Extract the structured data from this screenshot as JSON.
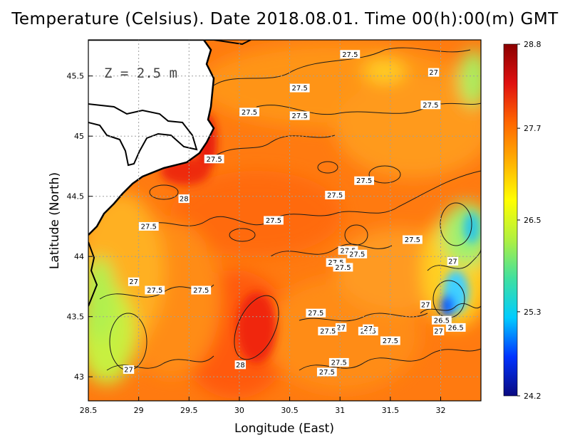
{
  "chart_data": {
    "type": "heatmap",
    "title": "Temperature (Celsius). Date 2018.08.01. Time 00(h):00(m)  GMT",
    "xlabel": "Longitude (East)",
    "ylabel": "Latitude (North)",
    "xlim": [
      28.5,
      32.4
    ],
    "ylim": [
      42.8,
      45.8
    ],
    "x_ticks": [
      28.5,
      29,
      29.5,
      30,
      30.5,
      31,
      31.5,
      32
    ],
    "x_tick_labels": [
      "28.5",
      "29",
      "29.5",
      "30",
      "30.5",
      "31",
      "31.5",
      "32"
    ],
    "y_ticks": [
      43,
      43.5,
      44,
      44.5,
      45,
      45.5
    ],
    "y_tick_labels": [
      "43",
      "43.5",
      "44",
      "44.5",
      "45",
      "45.5"
    ],
    "grid": true,
    "annotation": "Z = 2.5 m",
    "colorbar": {
      "min": 24.2,
      "max": 28.8,
      "tick_values": [
        28.8,
        27.7,
        26.5,
        25.3,
        24.2
      ],
      "tick_labels": [
        "28.8",
        "27.7",
        "26.5",
        "25.3",
        "24.2"
      ],
      "colors": [
        "#0a0a80",
        "#0033ff",
        "#00ccff",
        "#40e0a0",
        "#b0f040",
        "#ffff00",
        "#ffb000",
        "#ff6600",
        "#e01010",
        "#8b0000"
      ]
    },
    "contour_labels": [
      {
        "text": "27.5",
        "x": 31.1,
        "y": 45.68
      },
      {
        "text": "27",
        "x": 31.93,
        "y": 45.53
      },
      {
        "text": "27.5",
        "x": 30.6,
        "y": 45.4
      },
      {
        "text": "27.5",
        "x": 30.1,
        "y": 45.2
      },
      {
        "text": "27.5",
        "x": 31.9,
        "y": 45.26
      },
      {
        "text": "27.5",
        "x": 30.6,
        "y": 45.17
      },
      {
        "text": "27.5",
        "x": 29.75,
        "y": 44.81
      },
      {
        "text": "27.5",
        "x": 31.24,
        "y": 44.63
      },
      {
        "text": "28",
        "x": 29.45,
        "y": 44.48
      },
      {
        "text": "27.5",
        "x": 30.95,
        "y": 44.51
      },
      {
        "text": "27.5",
        "x": 29.1,
        "y": 44.25
      },
      {
        "text": "27.5",
        "x": 30.34,
        "y": 44.3
      },
      {
        "text": "27.5",
        "x": 31.72,
        "y": 44.14
      },
      {
        "text": "27.5",
        "x": 31.08,
        "y": 44.05
      },
      {
        "text": "27.5",
        "x": 31.17,
        "y": 44.02
      },
      {
        "text": "27",
        "x": 32.12,
        "y": 43.96
      },
      {
        "text": "27.5",
        "x": 30.96,
        "y": 43.95
      },
      {
        "text": "27.5",
        "x": 31.03,
        "y": 43.91
      },
      {
        "text": "27",
        "x": 28.95,
        "y": 43.79
      },
      {
        "text": "27.5",
        "x": 29.16,
        "y": 43.72
      },
      {
        "text": "27.5",
        "x": 29.62,
        "y": 43.72
      },
      {
        "text": "27",
        "x": 31.85,
        "y": 43.6
      },
      {
        "text": "27.5",
        "x": 30.76,
        "y": 43.53
      },
      {
        "text": "26.5",
        "x": 32.01,
        "y": 43.47
      },
      {
        "text": "26.5",
        "x": 32.15,
        "y": 43.41
      },
      {
        "text": "27",
        "x": 31.01,
        "y": 43.41
      },
      {
        "text": "27.5",
        "x": 31.28,
        "y": 43.38
      },
      {
        "text": "27.5",
        "x": 30.88,
        "y": 43.38
      },
      {
        "text": "27",
        "x": 31.28,
        "y": 43.4
      },
      {
        "text": "27",
        "x": 31.98,
        "y": 43.38
      },
      {
        "text": "27.5",
        "x": 31.5,
        "y": 43.3
      },
      {
        "text": "28",
        "x": 30.01,
        "y": 43.1
      },
      {
        "text": "27.5",
        "x": 30.99,
        "y": 43.12
      },
      {
        "text": "27",
        "x": 28.9,
        "y": 43.06
      },
      {
        "text": "27.5",
        "x": 30.87,
        "y": 43.04
      }
    ]
  }
}
